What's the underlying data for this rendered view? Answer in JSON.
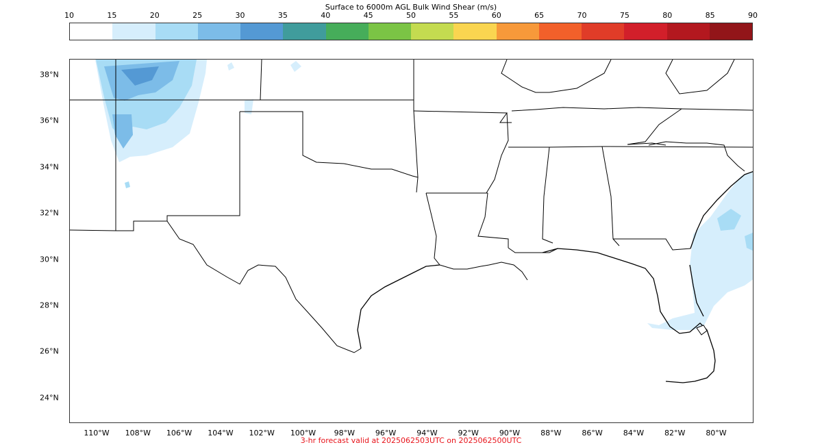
{
  "title": "Surface to 6000m AGL Bulk Wind Shear (m/s)",
  "footer": "3-hr forecast valid at 2025062503UTC on 2025062500UTC",
  "footer_color": "#e8131a",
  "colorbar": {
    "ticks": [
      "10",
      "15",
      "20",
      "25",
      "30",
      "35",
      "40",
      "45",
      "50",
      "55",
      "60",
      "65",
      "70",
      "75",
      "80",
      "85",
      "90"
    ],
    "colors": [
      "#ffffff",
      "#d6eefc",
      "#a8dcf5",
      "#7cbce8",
      "#5499d4",
      "#409c9c",
      "#46ad5a",
      "#7bc445",
      "#c4db50",
      "#fad550",
      "#f7993a",
      "#f2602a",
      "#e03c28",
      "#d21f2a",
      "#b3181f",
      "#921519"
    ]
  },
  "map": {
    "lat_labels": [
      "38°N",
      "36°N",
      "34°N",
      "32°N",
      "30°N",
      "28°N",
      "26°N",
      "24°N"
    ],
    "lon_labels": [
      "110°W",
      "108°W",
      "106°W",
      "104°W",
      "102°W",
      "100°W",
      "98°W",
      "96°W",
      "94°W",
      "92°W",
      "90°W",
      "88°W",
      "86°W",
      "84°W",
      "82°W",
      "80°W"
    ]
  }
}
